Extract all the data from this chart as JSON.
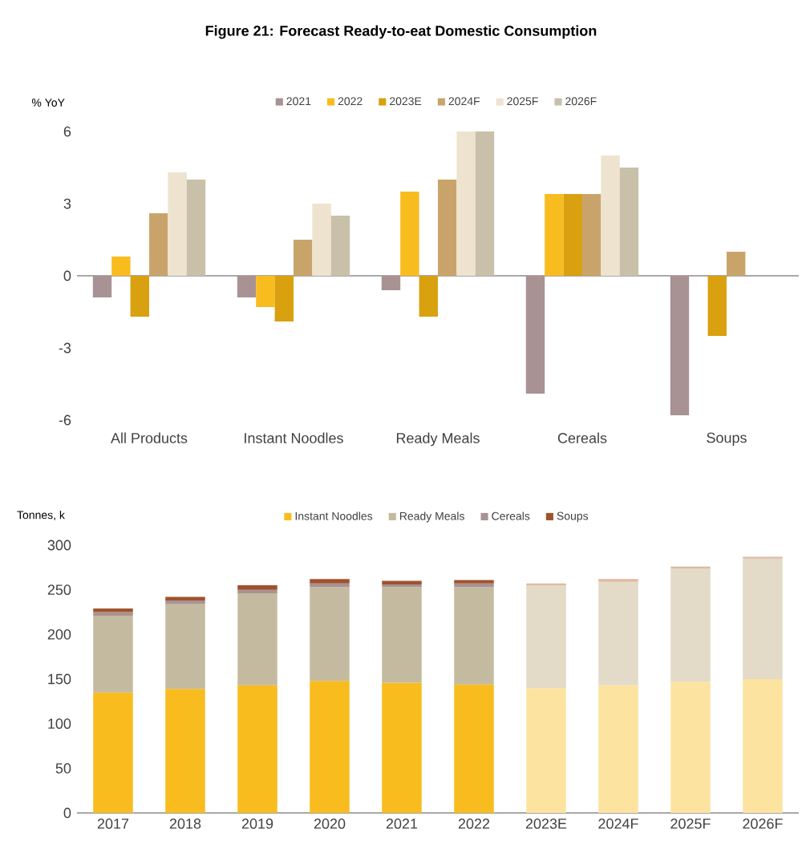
{
  "chart_data": [
    {
      "type": "bar",
      "title": "Figure 21: Forecast Ready-to-eat Domestic Consumption",
      "ylabel": "% YoY",
      "legend": "top",
      "categories": [
        "All Products",
        "Instant Noodles",
        "Ready Meals",
        "Cereals",
        "Soups"
      ],
      "ylim": [
        -6,
        6
      ],
      "yticks": [
        -6,
        -3,
        0,
        3,
        6
      ],
      "series": [
        {
          "name": "2021",
          "color": "#a89294",
          "values": [
            -0.9,
            -0.9,
            -0.6,
            -4.9,
            -5.8
          ]
        },
        {
          "name": "2022",
          "color": "#f9bc1f",
          "values": [
            0.8,
            -1.3,
            3.5,
            3.4,
            null
          ]
        },
        {
          "name": "2023E",
          "color": "#d9a010",
          "values": [
            -1.7,
            -1.9,
            -1.7,
            3.4,
            -2.5
          ]
        },
        {
          "name": "2024F",
          "color": "#c9a46a",
          "values": [
            2.6,
            1.5,
            4.0,
            3.4,
            1.0
          ]
        },
        {
          "name": "2025F",
          "color": "#ede3cf",
          "values": [
            4.3,
            3.0,
            6.0,
            5.0,
            null
          ]
        },
        {
          "name": "2026F",
          "color": "#c8c0a8",
          "values": [
            4.0,
            2.5,
            6.0,
            4.5,
            null
          ]
        }
      ]
    },
    {
      "type": "bar",
      "stacked": true,
      "ylabel": "Tonnes, k",
      "legend": "top",
      "categories": [
        "2017",
        "2018",
        "2019",
        "2020",
        "2021",
        "2022",
        "2023E",
        "2024F",
        "2025F",
        "2026F"
      ],
      "ylim": [
        0,
        300
      ],
      "yticks": [
        0,
        50,
        100,
        150,
        200,
        250,
        300
      ],
      "series": [
        {
          "name": "Instant Noodles",
          "color": "#f9bc1f",
          "colors": [
            "#f9bc1f",
            "#f9bc1f",
            "#f9bc1f",
            "#f9bc1f",
            "#f9bc1f",
            "#f9bc1f",
            "#fde3a0",
            "#fde3a0",
            "#fde3a0",
            "#fde3a0"
          ],
          "values": [
            135,
            139,
            143,
            148,
            146,
            144,
            140,
            143,
            147,
            150
          ]
        },
        {
          "name": "Ready Meals",
          "color": "#c4baa0",
          "colors": [
            "#c4baa0",
            "#c4baa0",
            "#c4baa0",
            "#c4baa0",
            "#c4baa0",
            "#c4baa0",
            "#e3dac8",
            "#e3dac8",
            "#e3dac8",
            "#e3dac8"
          ],
          "values": [
            86,
            95,
            103,
            105,
            107,
            109,
            115,
            116,
            127,
            135
          ]
        },
        {
          "name": "Cereals",
          "color": "#a89294",
          "colors": [
            "#a89294",
            "#a89294",
            "#a89294",
            "#a89294",
            "#a89294",
            "#a89294",
            "#d9cccc",
            "#d9cccc",
            "#d9cccc",
            "#d9cccc"
          ],
          "values": [
            4,
            4,
            4,
            4,
            3,
            4,
            null,
            null,
            null,
            null
          ]
        },
        {
          "name": "Soups",
          "color": "#a0522d",
          "colors": [
            "#a0522d",
            "#a0522d",
            "#a0522d",
            "#a0522d",
            "#a0522d",
            "#a0522d",
            "#e0b8a0",
            "#e0b8a0",
            "#e0b8a0",
            "#e0b8a0"
          ],
          "values": [
            4,
            4,
            5,
            5,
            4,
            4,
            2,
            3,
            2,
            2
          ]
        }
      ]
    }
  ]
}
